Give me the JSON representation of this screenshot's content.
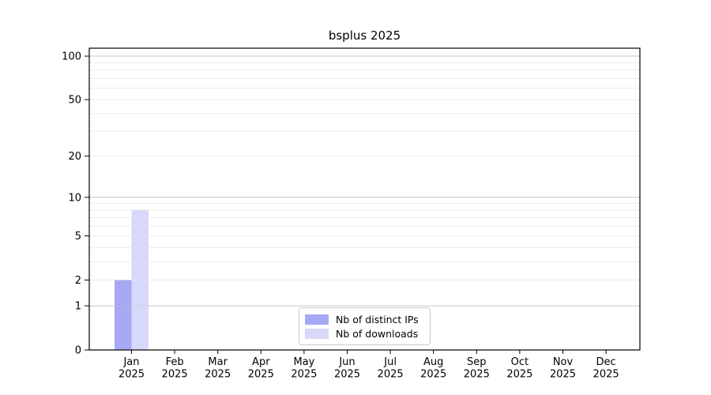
{
  "figure": {
    "background": "#ffffff"
  },
  "chart_data": {
    "type": "bar",
    "title": "bsplus 2025",
    "categories": [
      "Jan 2025",
      "Feb 2025",
      "Mar 2025",
      "Apr 2025",
      "May 2025",
      "Jun 2025",
      "Jul 2025",
      "Aug 2025",
      "Sep 2025",
      "Oct 2025",
      "Nov 2025",
      "Dec 2025"
    ],
    "series": [
      {
        "name": "Nb of distinct IPs",
        "color": "#a6a8f4",
        "values": [
          2,
          0,
          0,
          0,
          0,
          0,
          0,
          0,
          0,
          0,
          0,
          0
        ]
      },
      {
        "name": "Nb of downloads",
        "color": "#d7d8fa",
        "values": [
          8,
          0,
          0,
          0,
          0,
          0,
          0,
          0,
          0,
          0,
          0,
          0
        ]
      }
    ],
    "xlabel": "",
    "ylabel": "",
    "yscale": "log1p",
    "ylim": [
      0,
      113.4
    ],
    "yticks": [
      0,
      1,
      2,
      5,
      10,
      20,
      50,
      100
    ],
    "gridlines": {
      "dark": [
        1,
        10,
        100
      ],
      "light": [
        2,
        3,
        4,
        5,
        6,
        7,
        8,
        9,
        20,
        30,
        40,
        50,
        60,
        70,
        80,
        90
      ]
    },
    "grid_color_dark": "#c8c8c8",
    "grid_color_light": "#ebebeb",
    "legend_position": "lower center",
    "grid": "on"
  }
}
